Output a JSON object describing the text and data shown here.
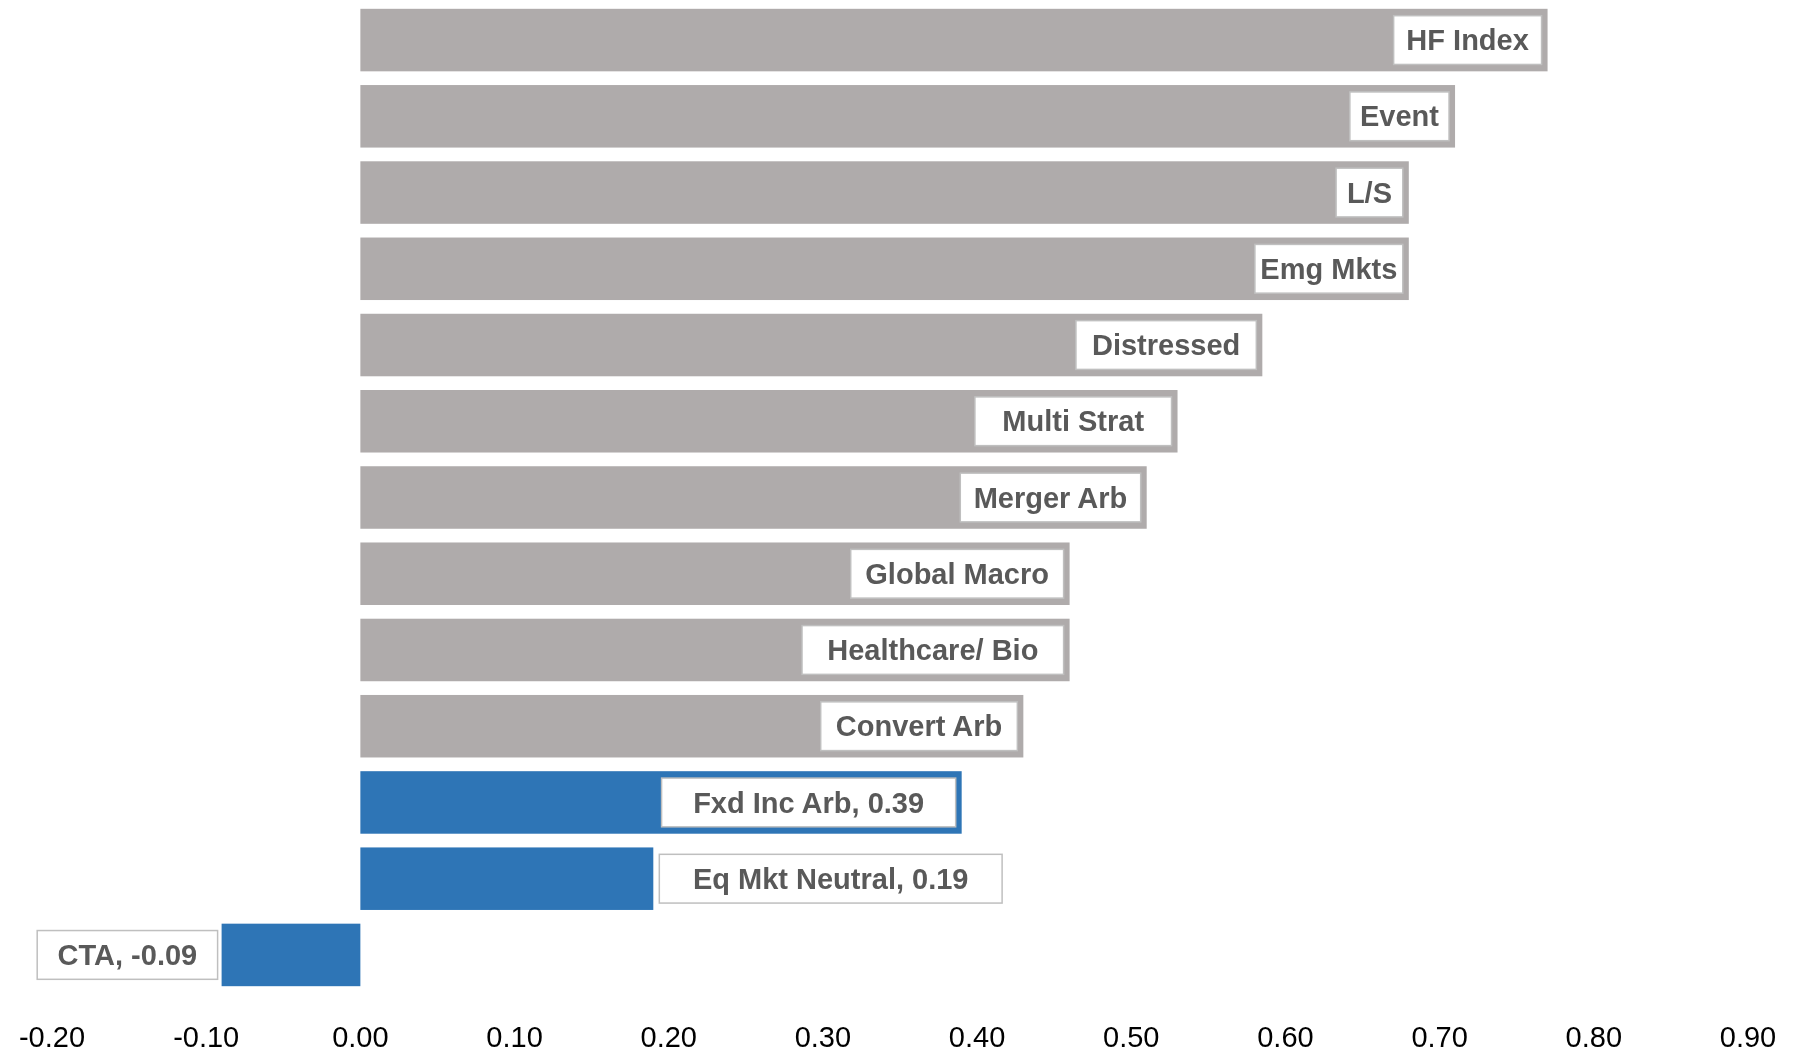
{
  "chart_data": {
    "type": "bar",
    "orientation": "horizontal",
    "categories": [
      "HF Index",
      "Event",
      "L/S",
      "Emg Mkts",
      "Distressed",
      "Multi Strat",
      "Merger Arb",
      "Global Macro",
      "Healthcare/ Bio",
      "Convert Arb",
      "Fxd Inc Arb, 0.39",
      "Eq Mkt Neutral, 0.19",
      "CTA, -0.09"
    ],
    "values": [
      0.77,
      0.71,
      0.68,
      0.68,
      0.585,
      0.53,
      0.51,
      0.46,
      0.46,
      0.43,
      0.39,
      0.19,
      -0.09
    ],
    "colors": [
      "#afabab",
      "#afabab",
      "#afabab",
      "#afabab",
      "#afabab",
      "#afabab",
      "#afabab",
      "#afabab",
      "#afabab",
      "#afabab",
      "#2e75b6",
      "#2e75b6",
      "#2e75b6"
    ],
    "xlim": [
      -0.2,
      0.9
    ],
    "xticks": [
      {
        "value": -0.2,
        "label": "-0.20"
      },
      {
        "value": -0.1,
        "label": "-0.10"
      },
      {
        "value": 0,
        "label": "0.00"
      },
      {
        "value": 0.1,
        "label": "0.10"
      },
      {
        "value": 0.2,
        "label": "0.20"
      },
      {
        "value": 0.3,
        "label": "0.30"
      },
      {
        "value": 0.4,
        "label": "0.40"
      },
      {
        "value": 0.5,
        "label": "0.50"
      },
      {
        "value": 0.6,
        "label": "0.60"
      },
      {
        "value": 0.7,
        "label": "0.70"
      },
      {
        "value": 0.8,
        "label": "0.80"
      },
      {
        "value": 0.9,
        "label": "0.90"
      }
    ],
    "grid": false
  }
}
